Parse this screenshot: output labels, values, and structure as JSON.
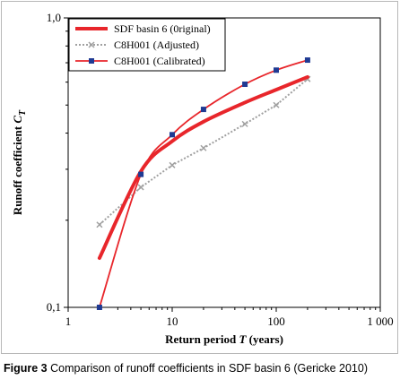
{
  "caption": {
    "label": "Figure 3",
    "text": "Comparison of runoff coefficients in SDF basin 6 (Gericke 2010)"
  },
  "chart_data": {
    "type": "line",
    "x_scale": "log",
    "y_scale": "log",
    "xlim": [
      1,
      1000
    ],
    "ylim": [
      0.1,
      1.0
    ],
    "x_ticks": [
      1,
      10,
      100,
      1000
    ],
    "x_tick_labels": [
      "1",
      "10",
      "100",
      "1 000"
    ],
    "y_ticks": [
      0.1,
      1.0
    ],
    "y_tick_labels": [
      "0,1",
      "1,0"
    ],
    "xlabel": "Return period T (years)",
    "ylabel": "Runoff coefficient C_T",
    "grid": false,
    "legend_position": "top-left",
    "series": [
      {
        "name": "SDF basin 6 (0riginal)",
        "style": "solid-thick",
        "color": "#e8262b",
        "x": [
          2,
          5,
          10,
          20,
          50,
          100,
          200
        ],
        "y": [
          0.148,
          0.295,
          0.375,
          0.438,
          0.51,
          0.565,
          0.625
        ]
      },
      {
        "name": "C8H001 (Adjusted)",
        "style": "dotted-cross",
        "color": "#a0a0a0",
        "x": [
          2,
          5,
          10,
          20,
          50,
          100,
          200
        ],
        "y": [
          0.193,
          0.26,
          0.31,
          0.355,
          0.43,
          0.5,
          0.615
        ]
      },
      {
        "name": "C8H001 (Calibrated)",
        "style": "solid-square",
        "color": "#e8262b",
        "marker_color": "#1f3a93",
        "x": [
          2,
          5,
          10,
          20,
          50,
          100,
          200
        ],
        "y": [
          0.1,
          0.288,
          0.395,
          0.483,
          0.59,
          0.66,
          0.715
        ]
      }
    ]
  }
}
